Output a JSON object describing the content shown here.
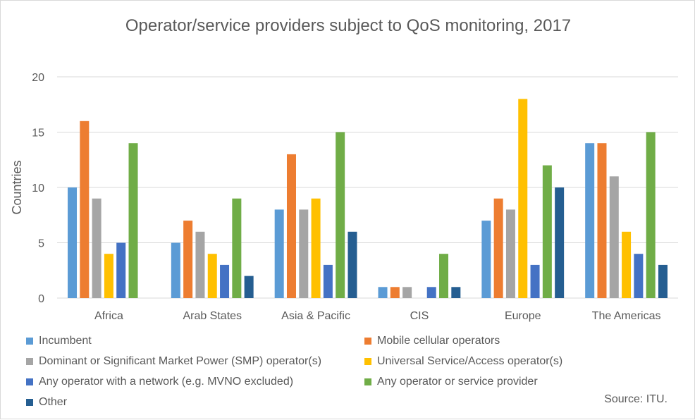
{
  "chart_data": {
    "type": "bar",
    "title": "Operator/service  providers subject  to QoS monitoring, 2017",
    "ylabel": "Countries",
    "xlabel": "",
    "ylim": [
      0,
      20
    ],
    "yticks": [
      0,
      5,
      10,
      15,
      20
    ],
    "grid": true,
    "legend_position": "bottom",
    "categories": [
      "Africa",
      "Arab States",
      "Asia & Pacific",
      "CIS",
      "Europe",
      "The Americas"
    ],
    "series": [
      {
        "name": "Incumbent",
        "color": "#5b9bd5",
        "values": [
          10,
          5,
          8,
          1,
          7,
          14
        ]
      },
      {
        "name": "Mobile cellular operators",
        "color": "#ed7d31",
        "values": [
          16,
          7,
          13,
          1,
          9,
          14
        ]
      },
      {
        "name": "Dominant or Significant Market Power (SMP) operator(s)",
        "color": "#a5a5a5",
        "values": [
          9,
          6,
          8,
          1,
          8,
          11
        ]
      },
      {
        "name": "Universal Service/Access operator(s)",
        "color": "#ffc000",
        "values": [
          4,
          4,
          9,
          0,
          18,
          6
        ]
      },
      {
        "name": "Any operator with a network (e.g. MVNO excluded)",
        "color": "#4472c4",
        "values": [
          5,
          3,
          3,
          1,
          3,
          4
        ]
      },
      {
        "name": "Any operator or service provider",
        "color": "#70ad47",
        "values": [
          14,
          9,
          15,
          4,
          12,
          15
        ]
      },
      {
        "name": "Other",
        "color": "#255e91",
        "values": [
          0,
          2,
          6,
          1,
          10,
          3
        ]
      }
    ]
  },
  "source": "Source: ITU."
}
